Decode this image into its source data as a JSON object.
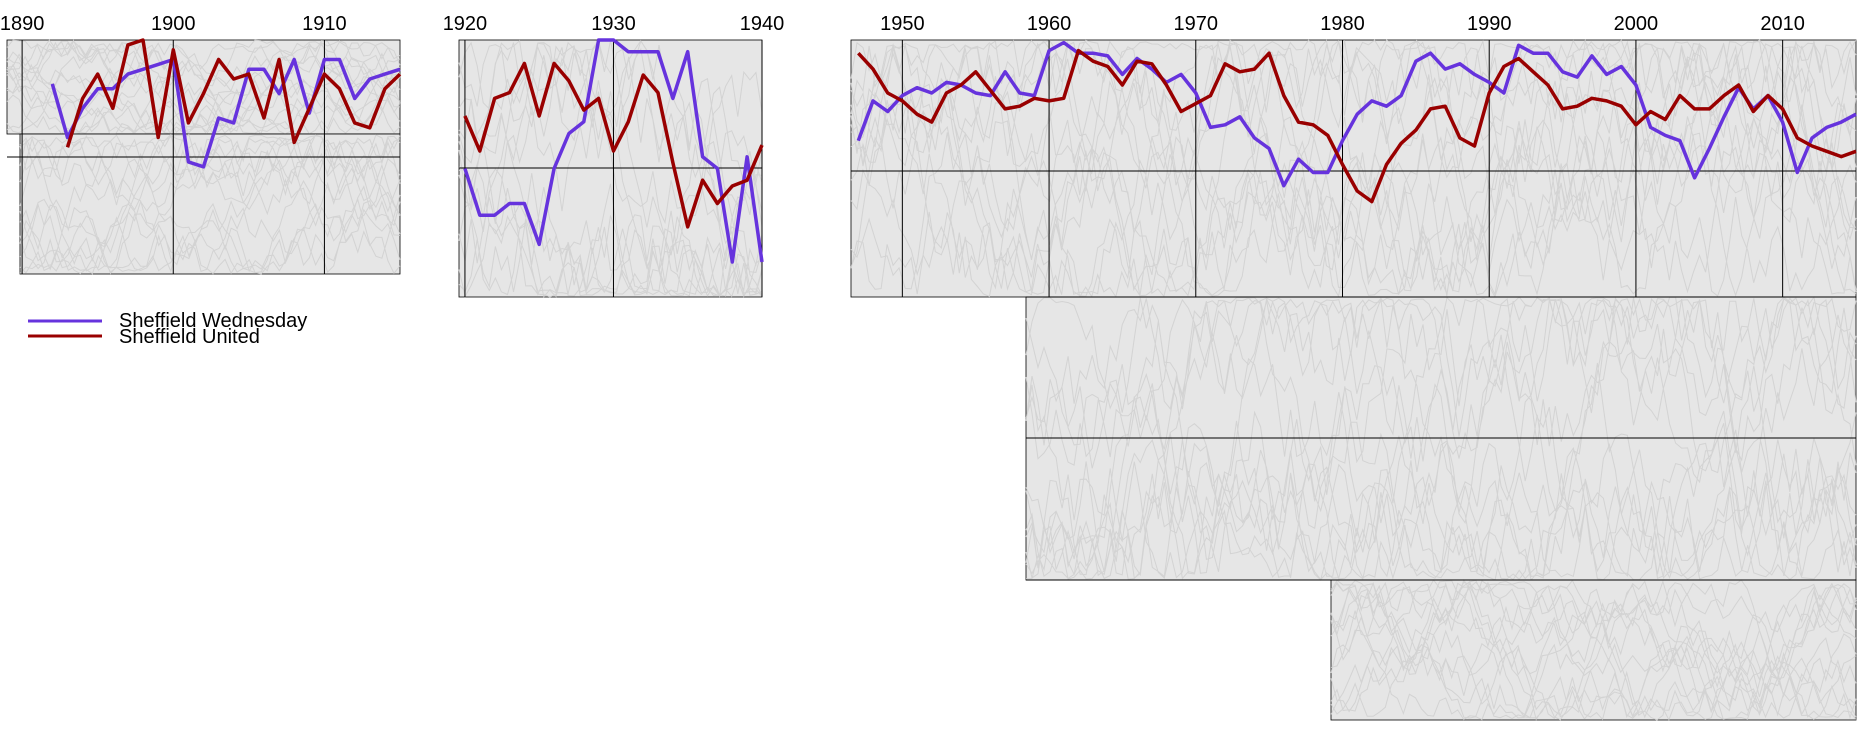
{
  "chart_data": {
    "type": "line",
    "title": "",
    "xlabel": "",
    "ylabel": "",
    "grid": true,
    "legend_position": "left, below first panel",
    "background_fill": "#e6e6e6",
    "background_stroke": "#d0d0d0",
    "colors": {
      "Sheffield Wednesday": "#6633dd",
      "Sheffield United": "#990000"
    },
    "panels": [
      {
        "xlim": [
          1889,
          1915
        ],
        "ylim": [
          0,
          48
        ],
        "xticks": [
          1890,
          1900,
          1910
        ],
        "series": [
          {
            "name": "Sheffield Wednesday",
            "x": [
              1892,
              1893,
              1894,
              1895,
              1896,
              1897,
              1898,
              1899,
              1900,
              1901,
              1902,
              1903,
              1904,
              1905,
              1906,
              1907,
              1908,
              1909,
              1910,
              1911,
              1912,
              1913,
              1914,
              1915
            ],
            "y": [
              9,
              20,
              14,
              10,
              10,
              7,
              6,
              5,
              4,
              25,
              26,
              16,
              17,
              6,
              6,
              11,
              4,
              15,
              4,
              4,
              12,
              8,
              7,
              6
            ]
          },
          {
            "name": "Sheffield United",
            "x": [
              1893,
              1894,
              1895,
              1896,
              1897,
              1898,
              1899,
              1900,
              1901,
              1902,
              1903,
              1904,
              1905,
              1906,
              1907,
              1908,
              1909,
              1910,
              1911,
              1912,
              1913,
              1914,
              1915
            ],
            "y": [
              22,
              12,
              7,
              14,
              1,
              0,
              20,
              2,
              17,
              11,
              4,
              8,
              7,
              16,
              4,
              21,
              14,
              7,
              10,
              17,
              18,
              10,
              7
            ]
          }
        ]
      },
      {
        "xlim": [
          1919.6,
          1940
        ],
        "ylim": [
          0,
          44
        ],
        "xticks": [
          1920,
          1930,
          1940
        ],
        "series": [
          {
            "name": "Sheffield Wednesday",
            "x": [
              1920,
              1921,
              1922,
              1923,
              1924,
              1925,
              1926,
              1927,
              1928,
              1929,
              1930,
              1931,
              1932,
              1933,
              1934,
              1935,
              1936,
              1937,
              1938,
              1939,
              1940
            ],
            "y": [
              22,
              30,
              30,
              28,
              28,
              35,
              22,
              16,
              14,
              0,
              0,
              2,
              2,
              2,
              10,
              2,
              20,
              22,
              38,
              20,
              38
            ]
          },
          {
            "name": "Sheffield United",
            "x": [
              1920,
              1921,
              1922,
              1923,
              1924,
              1925,
              1926,
              1927,
              1928,
              1929,
              1930,
              1931,
              1932,
              1933,
              1934,
              1935,
              1936,
              1937,
              1938,
              1939,
              1940
            ],
            "y": [
              13,
              19,
              10,
              9,
              4,
              13,
              4,
              7,
              12,
              10,
              19,
              14,
              6,
              9,
              21,
              32,
              24,
              28,
              25,
              24,
              18
            ]
          }
        ]
      },
      {
        "xlim": [
          1946.5,
          2015
        ],
        "ylim": [
          0,
          97
        ],
        "xticks": [
          1950,
          1960,
          1970,
          1980,
          1990,
          2000,
          2010
        ],
        "series": [
          {
            "name": "Sheffield Wednesday",
            "x": [
              1947,
              1948,
              1949,
              1950,
              1951,
              1952,
              1953,
              1954,
              1955,
              1956,
              1957,
              1958,
              1959,
              1960,
              1961,
              1962,
              1963,
              1964,
              1965,
              1966,
              1967,
              1968,
              1969,
              1970,
              1971,
              1972,
              1973,
              1974,
              1975,
              1976,
              1977,
              1978,
              1979,
              1980,
              1981,
              1982,
              1983,
              1984,
              1985,
              1986,
              1987,
              1988,
              1989,
              1990,
              1991,
              1992,
              1993,
              1994,
              1995,
              1996,
              1997,
              1998,
              1999,
              2000,
              2001,
              2002,
              2003,
              2004,
              2005,
              2006,
              2007,
              2008,
              2009,
              2010,
              2011,
              2012,
              2013,
              2014,
              2015
            ],
            "y": [
              38,
              23,
              27,
              21,
              18,
              20,
              16,
              17,
              20,
              21,
              12,
              20,
              21,
              4,
              1,
              5,
              5,
              6,
              13,
              7,
              11,
              16,
              13,
              20,
              33,
              32,
              29,
              37,
              41,
              55,
              45,
              50,
              50,
              38,
              28,
              23,
              25,
              21,
              8,
              5,
              11,
              9,
              13,
              16,
              20,
              2,
              5,
              5,
              12,
              14,
              6,
              13,
              10,
              17,
              33,
              36,
              38,
              52,
              41,
              29,
              18,
              26,
              21,
              31,
              50,
              37,
              33,
              31,
              28
            ]
          },
          {
            "name": "Sheffield United",
            "x": [
              1947,
              1948,
              1949,
              1950,
              1951,
              1952,
              1953,
              1954,
              1955,
              1956,
              1957,
              1958,
              1959,
              1960,
              1961,
              1962,
              1963,
              1964,
              1965,
              1966,
              1967,
              1968,
              1969,
              1970,
              1971,
              1972,
              1973,
              1974,
              1975,
              1976,
              1977,
              1978,
              1979,
              1980,
              1981,
              1982,
              1983,
              1984,
              1985,
              1986,
              1987,
              1988,
              1989,
              1990,
              1991,
              1992,
              1993,
              1994,
              1995,
              1996,
              1997,
              1998,
              1999,
              2000,
              2001,
              2002,
              2003,
              2004,
              2005,
              2006,
              2007,
              2008,
              2009,
              2010,
              2011,
              2012,
              2013,
              2014,
              2015
            ],
            "y": [
              5,
              11,
              20,
              23,
              28,
              31,
              20,
              17,
              12,
              19,
              26,
              25,
              22,
              23,
              22,
              4,
              8,
              10,
              17,
              8,
              9,
              17,
              27,
              24,
              21,
              9,
              12,
              11,
              5,
              21,
              31,
              32,
              36,
              47,
              57,
              61,
              47,
              39,
              34,
              26,
              25,
              37,
              40,
              20,
              10,
              7,
              12,
              17,
              26,
              25,
              22,
              23,
              25,
              32,
              27,
              30,
              21,
              26,
              26,
              21,
              17,
              27,
              21,
              26,
              37,
              40,
              42,
              44,
              42
            ]
          }
        ]
      }
    ],
    "legend": [
      "Sheffield Wednesday",
      "Sheffield United"
    ]
  }
}
